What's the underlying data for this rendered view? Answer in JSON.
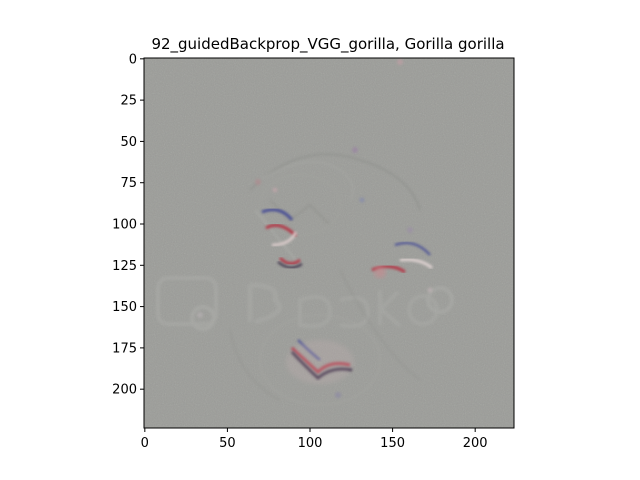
{
  "figure": {
    "title": "92_guidedBackprop_VGG_gorilla, Gorilla gorilla",
    "image_size": [
      224,
      224
    ],
    "x_axis": {
      "ticks": [
        0,
        50,
        100,
        150,
        200
      ],
      "range": [
        -0.5,
        223.5
      ]
    },
    "y_axis": {
      "ticks": [
        0,
        25,
        50,
        75,
        100,
        125,
        150,
        175,
        200
      ],
      "range": [
        -0.5,
        223.5
      ]
    },
    "colors": {
      "background": "#9b9c98",
      "frame": "#000000",
      "highlight_red": "#b23a4a",
      "highlight_blue": "#4a4f96",
      "highlight_dark": "#3a2d46"
    }
  }
}
